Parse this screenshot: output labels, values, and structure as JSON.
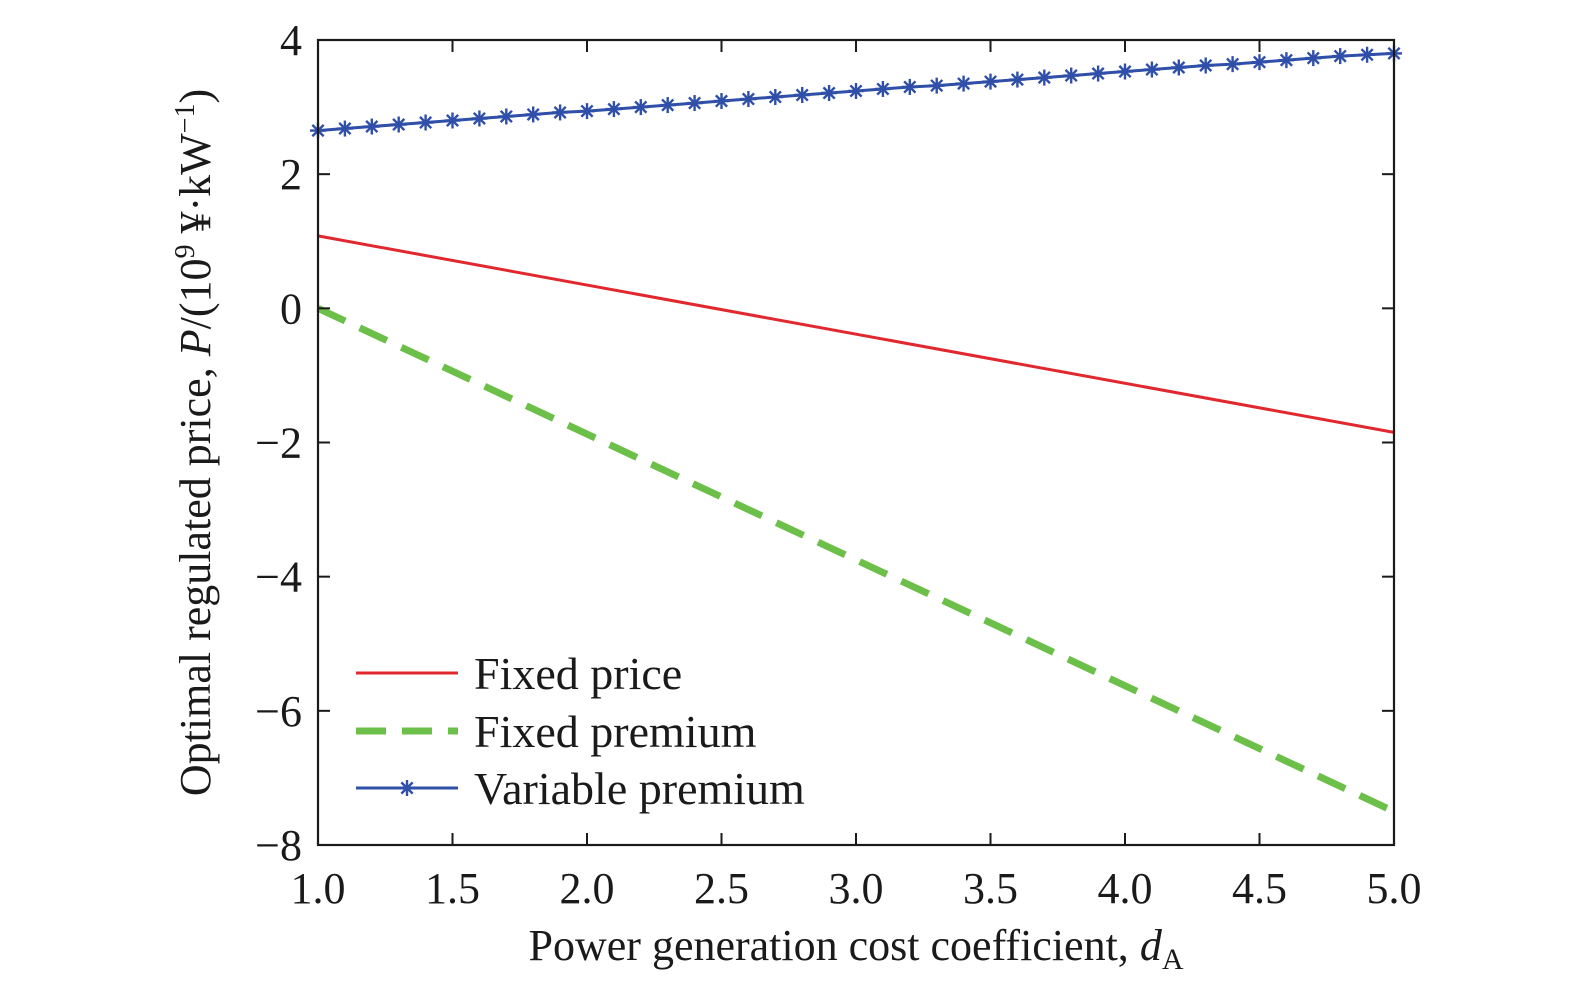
{
  "chart_data": {
    "type": "line",
    "xlabel": "Power generation cost coefficient, ",
    "xlabel_var": "d",
    "xlabel_sub": "A",
    "ylabel": "Optimal regulated price, ",
    "ylabel_var": "P",
    "ylabel_unit_prefix": "/(10",
    "ylabel_unit_exp": "9",
    "ylabel_unit_suffix": " ¥·kW",
    "ylabel_unit_exp2": "−1",
    "ylabel_unit_close": ")",
    "xlim": [
      1.0,
      5.0
    ],
    "ylim": [
      -8,
      4
    ],
    "xticks": [
      1.0,
      1.5,
      2.0,
      2.5,
      3.0,
      3.5,
      4.0,
      4.5,
      5.0
    ],
    "xtick_labels": [
      "1.0",
      "1.5",
      "2.0",
      "2.5",
      "3.0",
      "3.5",
      "4.0",
      "4.5",
      "5.0"
    ],
    "yticks": [
      -8,
      -6,
      -4,
      -2,
      0,
      2,
      4
    ],
    "ytick_labels": [
      "−8",
      "−6",
      "−4",
      "−2",
      "0",
      "2",
      "4"
    ],
    "grid": false,
    "legend_position": "bottom-left",
    "series": [
      {
        "name": "Fixed price",
        "color": "#e0282e",
        "style": "solid",
        "marker": "none",
        "x": [
          1.0,
          5.0
        ],
        "y": [
          1.08,
          -1.85
        ]
      },
      {
        "name": "Fixed premium",
        "color": "#6cc04a",
        "style": "dashed",
        "marker": "none",
        "x": [
          1.0,
          5.0
        ],
        "y": [
          0.0,
          -7.5
        ]
      },
      {
        "name": "Variable premium",
        "color": "#2f4fa8",
        "style": "solid",
        "marker": "asterisk",
        "x": [
          1.0,
          1.1,
          1.2,
          1.3,
          1.4,
          1.5,
          1.6,
          1.7,
          1.8,
          1.9,
          2.0,
          2.1,
          2.2,
          2.3,
          2.4,
          2.5,
          2.6,
          2.7,
          2.8,
          2.9,
          3.0,
          3.1,
          3.2,
          3.3,
          3.4,
          3.5,
          3.6,
          3.7,
          3.8,
          3.9,
          4.0,
          4.1,
          4.2,
          4.3,
          4.4,
          4.5,
          4.6,
          4.7,
          4.8,
          4.9,
          5.0
        ],
        "y": [
          2.65,
          2.68,
          2.71,
          2.74,
          2.77,
          2.8,
          2.83,
          2.86,
          2.89,
          2.92,
          2.94,
          2.97,
          3.0,
          3.03,
          3.06,
          3.09,
          3.12,
          3.15,
          3.18,
          3.21,
          3.24,
          3.27,
          3.3,
          3.32,
          3.35,
          3.38,
          3.41,
          3.44,
          3.47,
          3.5,
          3.53,
          3.56,
          3.59,
          3.62,
          3.64,
          3.67,
          3.7,
          3.73,
          3.76,
          3.78,
          3.8
        ]
      }
    ]
  }
}
